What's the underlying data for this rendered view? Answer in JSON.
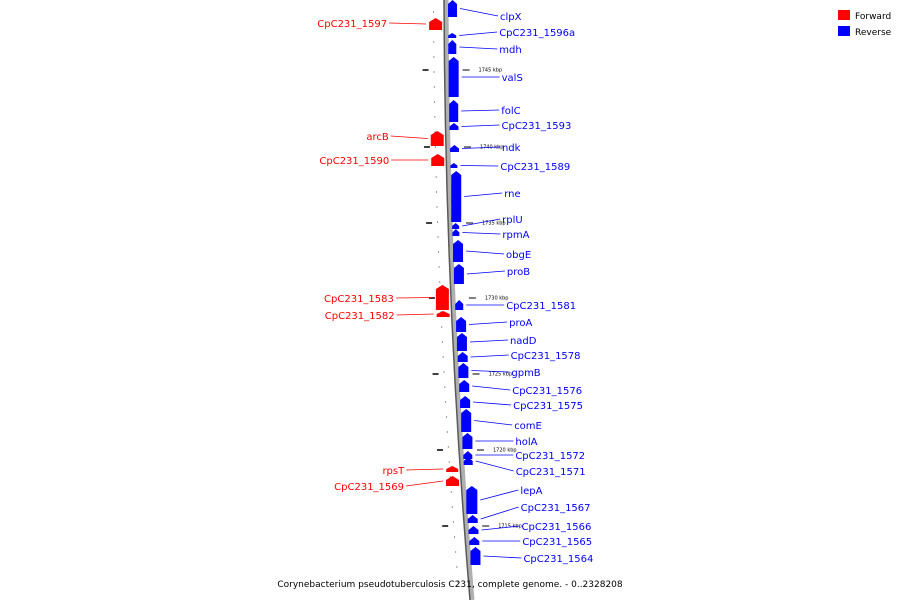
{
  "legend": {
    "forward_label": "Forward",
    "reverse_label": "Reverse",
    "forward_color": "#ff0000",
    "reverse_color": "#0000ff"
  },
  "caption": "Corynebacterium pseudotuberculosis C231, complete genome. - 0..2328208",
  "chart_data": {
    "type": "genome-map",
    "strand_colors": {
      "forward": "#ff0000",
      "reverse": "#0000ff"
    },
    "ruler_labels": [
      "1745 kbp",
      "1740 kbp",
      "1735 kbp",
      "1730 kbp",
      "1725 kbp",
      "1720 kbp",
      "1715 kbp"
    ],
    "forward_genes": [
      "CpC231_1597",
      "arcB",
      "CpC231_1590",
      "CpC231_1583",
      "CpC231_1582",
      "rpsT",
      "CpC231_1569"
    ],
    "reverse_genes": [
      "clpX",
      "CpC231_1596a",
      "mdh",
      "valS",
      "folC",
      "CpC231_1593",
      "ndk",
      "CpC231_1589",
      "rne",
      "rplU",
      "rpmA",
      "obgE",
      "proB",
      "CpC231_1581",
      "proA",
      "nadD",
      "CpC231_1578",
      "gpmB",
      "CpC231_1576",
      "CpC231_1575",
      "comE",
      "holA",
      "CpC231_1572",
      "CpC231_1571",
      "lepA",
      "CpC231_1567",
      "CpC231_1566",
      "CpC231_1565",
      "CpC231_1564"
    ]
  }
}
